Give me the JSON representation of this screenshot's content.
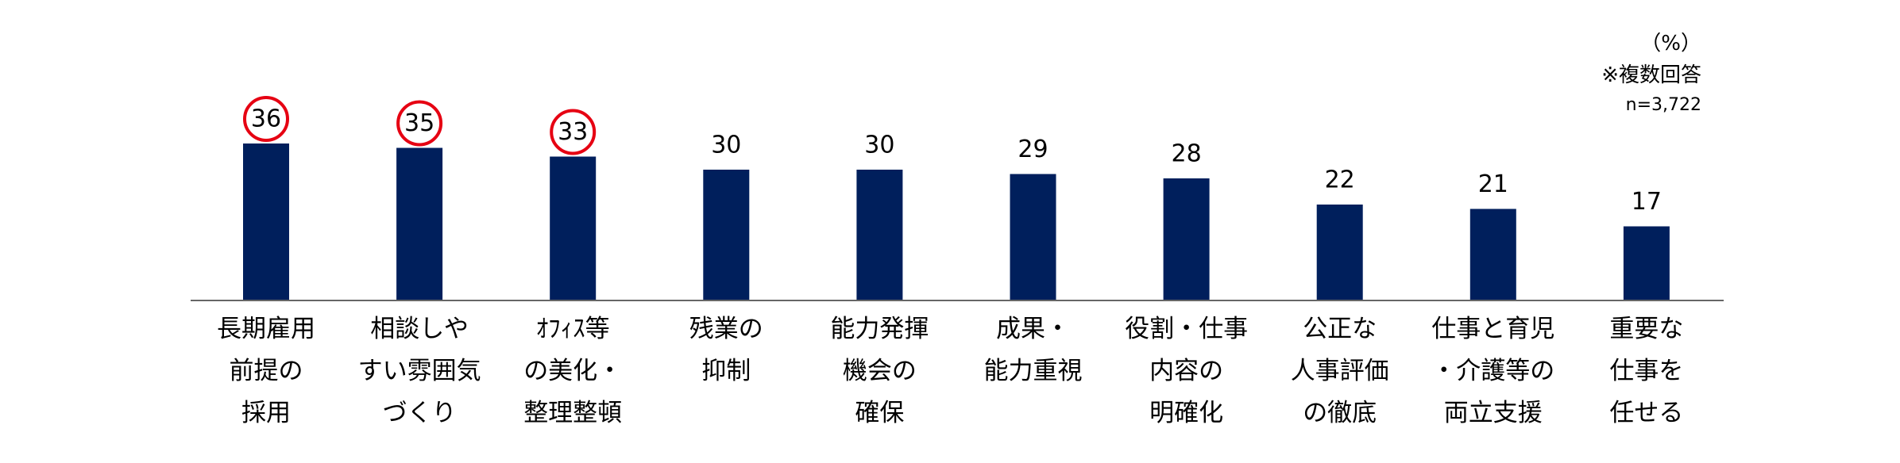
{
  "chart_data": {
    "type": "bar",
    "title": "",
    "xlabel": "",
    "ylabel": "",
    "unit_label": "（%）",
    "note": "※複数回答",
    "sample_size": "n=3,722",
    "ylim": [
      0,
      40
    ],
    "bar_color": "#001f5c",
    "highlight_color": "#e60012",
    "categories": [
      [
        "長期雇用",
        "前提の",
        "採用"
      ],
      [
        "相談しや",
        "すい雰囲気",
        "づくり"
      ],
      [
        "ｵﾌｨｽ等",
        "の美化・",
        "整理整頓"
      ],
      [
        "残業の",
        "抑制"
      ],
      [
        "能力発揮",
        "機会の",
        "確保"
      ],
      [
        "成果・",
        "能力重視"
      ],
      [
        "役割・仕事",
        "内容の",
        "明確化"
      ],
      [
        "公正な",
        "人事評価",
        "の徹底"
      ],
      [
        "仕事と育児",
        "・介護等の",
        "両立支援"
      ],
      [
        "重要な",
        "仕事を",
        "任せる"
      ]
    ],
    "values": [
      36,
      35,
      33,
      30,
      30,
      29,
      28,
      22,
      21,
      17
    ],
    "value_labels": [
      "36",
      "35",
      "33",
      "30",
      "30",
      "29",
      "28",
      "22",
      "21",
      "17"
    ],
    "highlighted": [
      true,
      true,
      true,
      false,
      false,
      false,
      false,
      false,
      false,
      false
    ]
  }
}
